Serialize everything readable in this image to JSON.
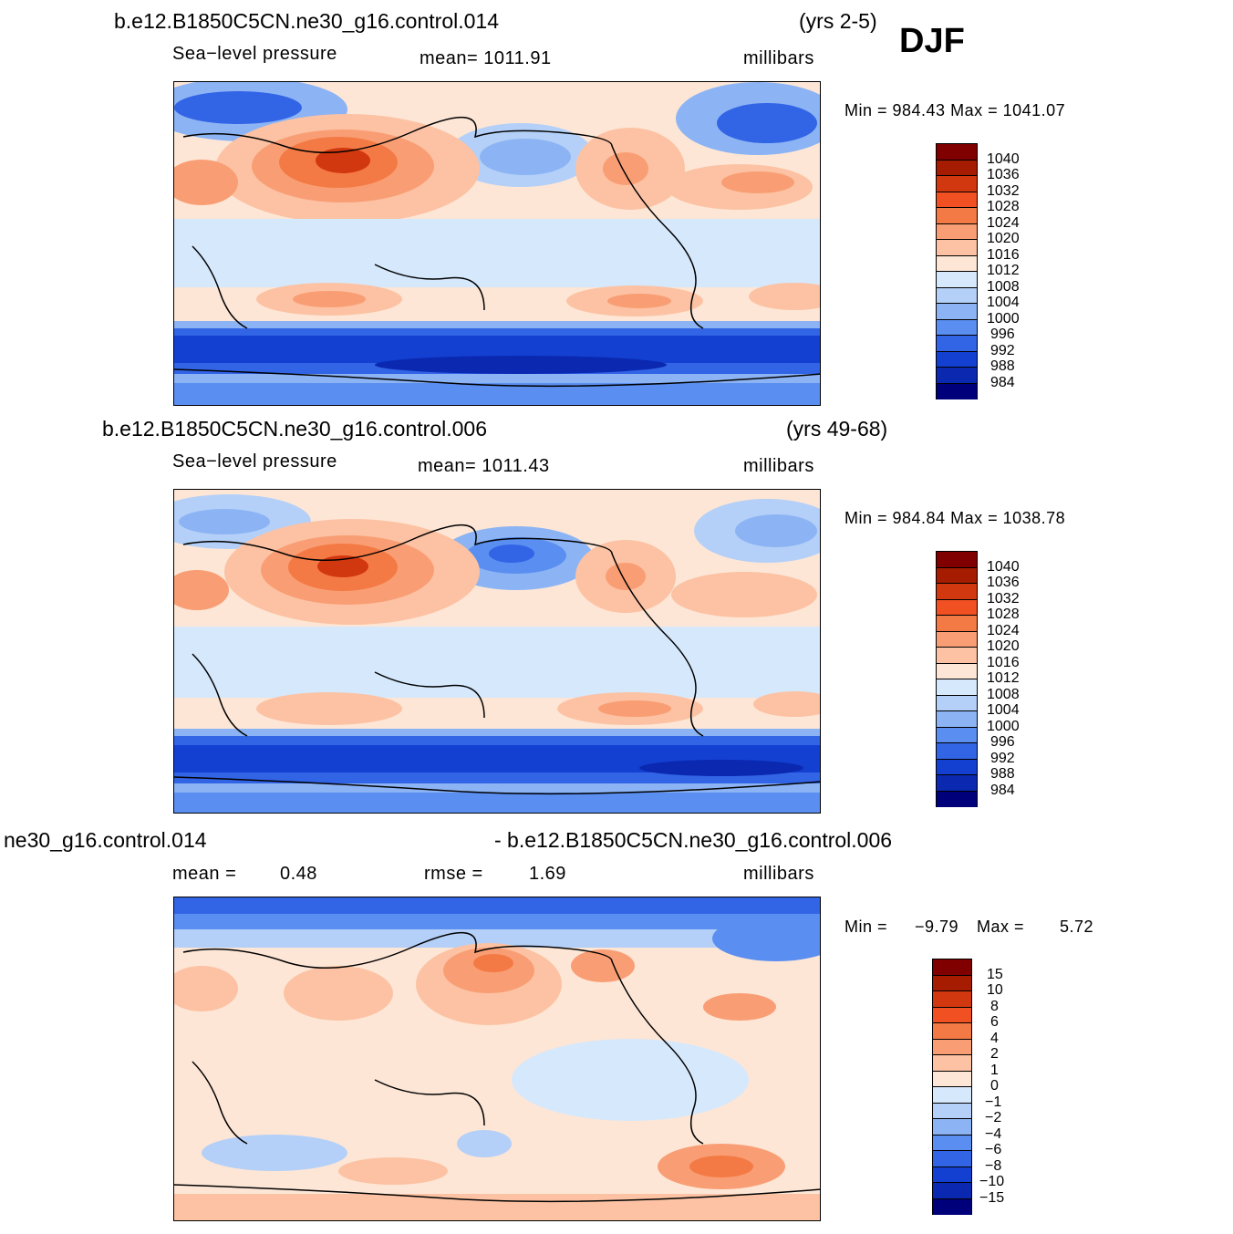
{
  "season": "DJF",
  "panels": [
    {
      "case": "b.e12.B1850C5CN.ne30_g16.control.014",
      "years": "(yrs 2-5)",
      "variable": "Sea−level pressure",
      "stat": "mean=  1011.91",
      "units": "millibars",
      "minmax": "Min  =  984.43  Max  =  1041.07",
      "colorbar": [
        "1040",
        "1036",
        "1032",
        "1028",
        "1024",
        "1020",
        "1016",
        "1012",
        "1008",
        "1004",
        "1000",
        "996",
        "992",
        "988",
        "984"
      ]
    },
    {
      "case": "b.e12.B1850C5CN.ne30_g16.control.006",
      "years": "(yrs 49-68)",
      "variable": "Sea−level pressure",
      "stat": "mean=  1011.43",
      "units": "millibars",
      "minmax": "Min  =  984.84  Max  =  1038.78",
      "colorbar": [
        "1040",
        "1036",
        "1032",
        "1028",
        "1024",
        "1020",
        "1016",
        "1012",
        "1008",
        "1004",
        "1000",
        "996",
        "992",
        "988",
        "984"
      ]
    },
    {
      "case_left": "ne30_g16.control.014",
      "case_right": "- b.e12.B1850C5CN.ne30_g16.control.006",
      "mean_label": "mean  =",
      "mean_value": "0.48",
      "rmse_label": "rmse  =",
      "rmse_value": "1.69",
      "units": "millibars",
      "min_label": "Min  =",
      "min_value": "−9.79",
      "max_label": "Max  =",
      "max_value": "5.72",
      "colorbar": [
        "15",
        "10",
        "8",
        "6",
        "4",
        "2",
        "1",
        "0",
        "−1",
        "−2",
        "−4",
        "−6",
        "−8",
        "−10",
        "−15"
      ]
    }
  ],
  "palette": {
    "abs": [
      "#800000",
      "#a51c00",
      "#d2380f",
      "#f05022",
      "#f47a45",
      "#f99e74",
      "#fcc2a3",
      "#fde6d6",
      "#d6e8fc",
      "#b4d0f8",
      "#8cb4f4",
      "#5a8ef0",
      "#3264e6",
      "#1440d2",
      "#0a28b0",
      "#00007a"
    ],
    "diff": [
      "#800000",
      "#a51c00",
      "#d2380f",
      "#f05022",
      "#f47a45",
      "#f99e74",
      "#fcc2a3",
      "#fde6d6",
      "#d6e8fc",
      "#b4d0f8",
      "#8cb4f4",
      "#5a8ef0",
      "#3264e6",
      "#1440d2",
      "#0a28b0",
      "#00007a"
    ]
  }
}
